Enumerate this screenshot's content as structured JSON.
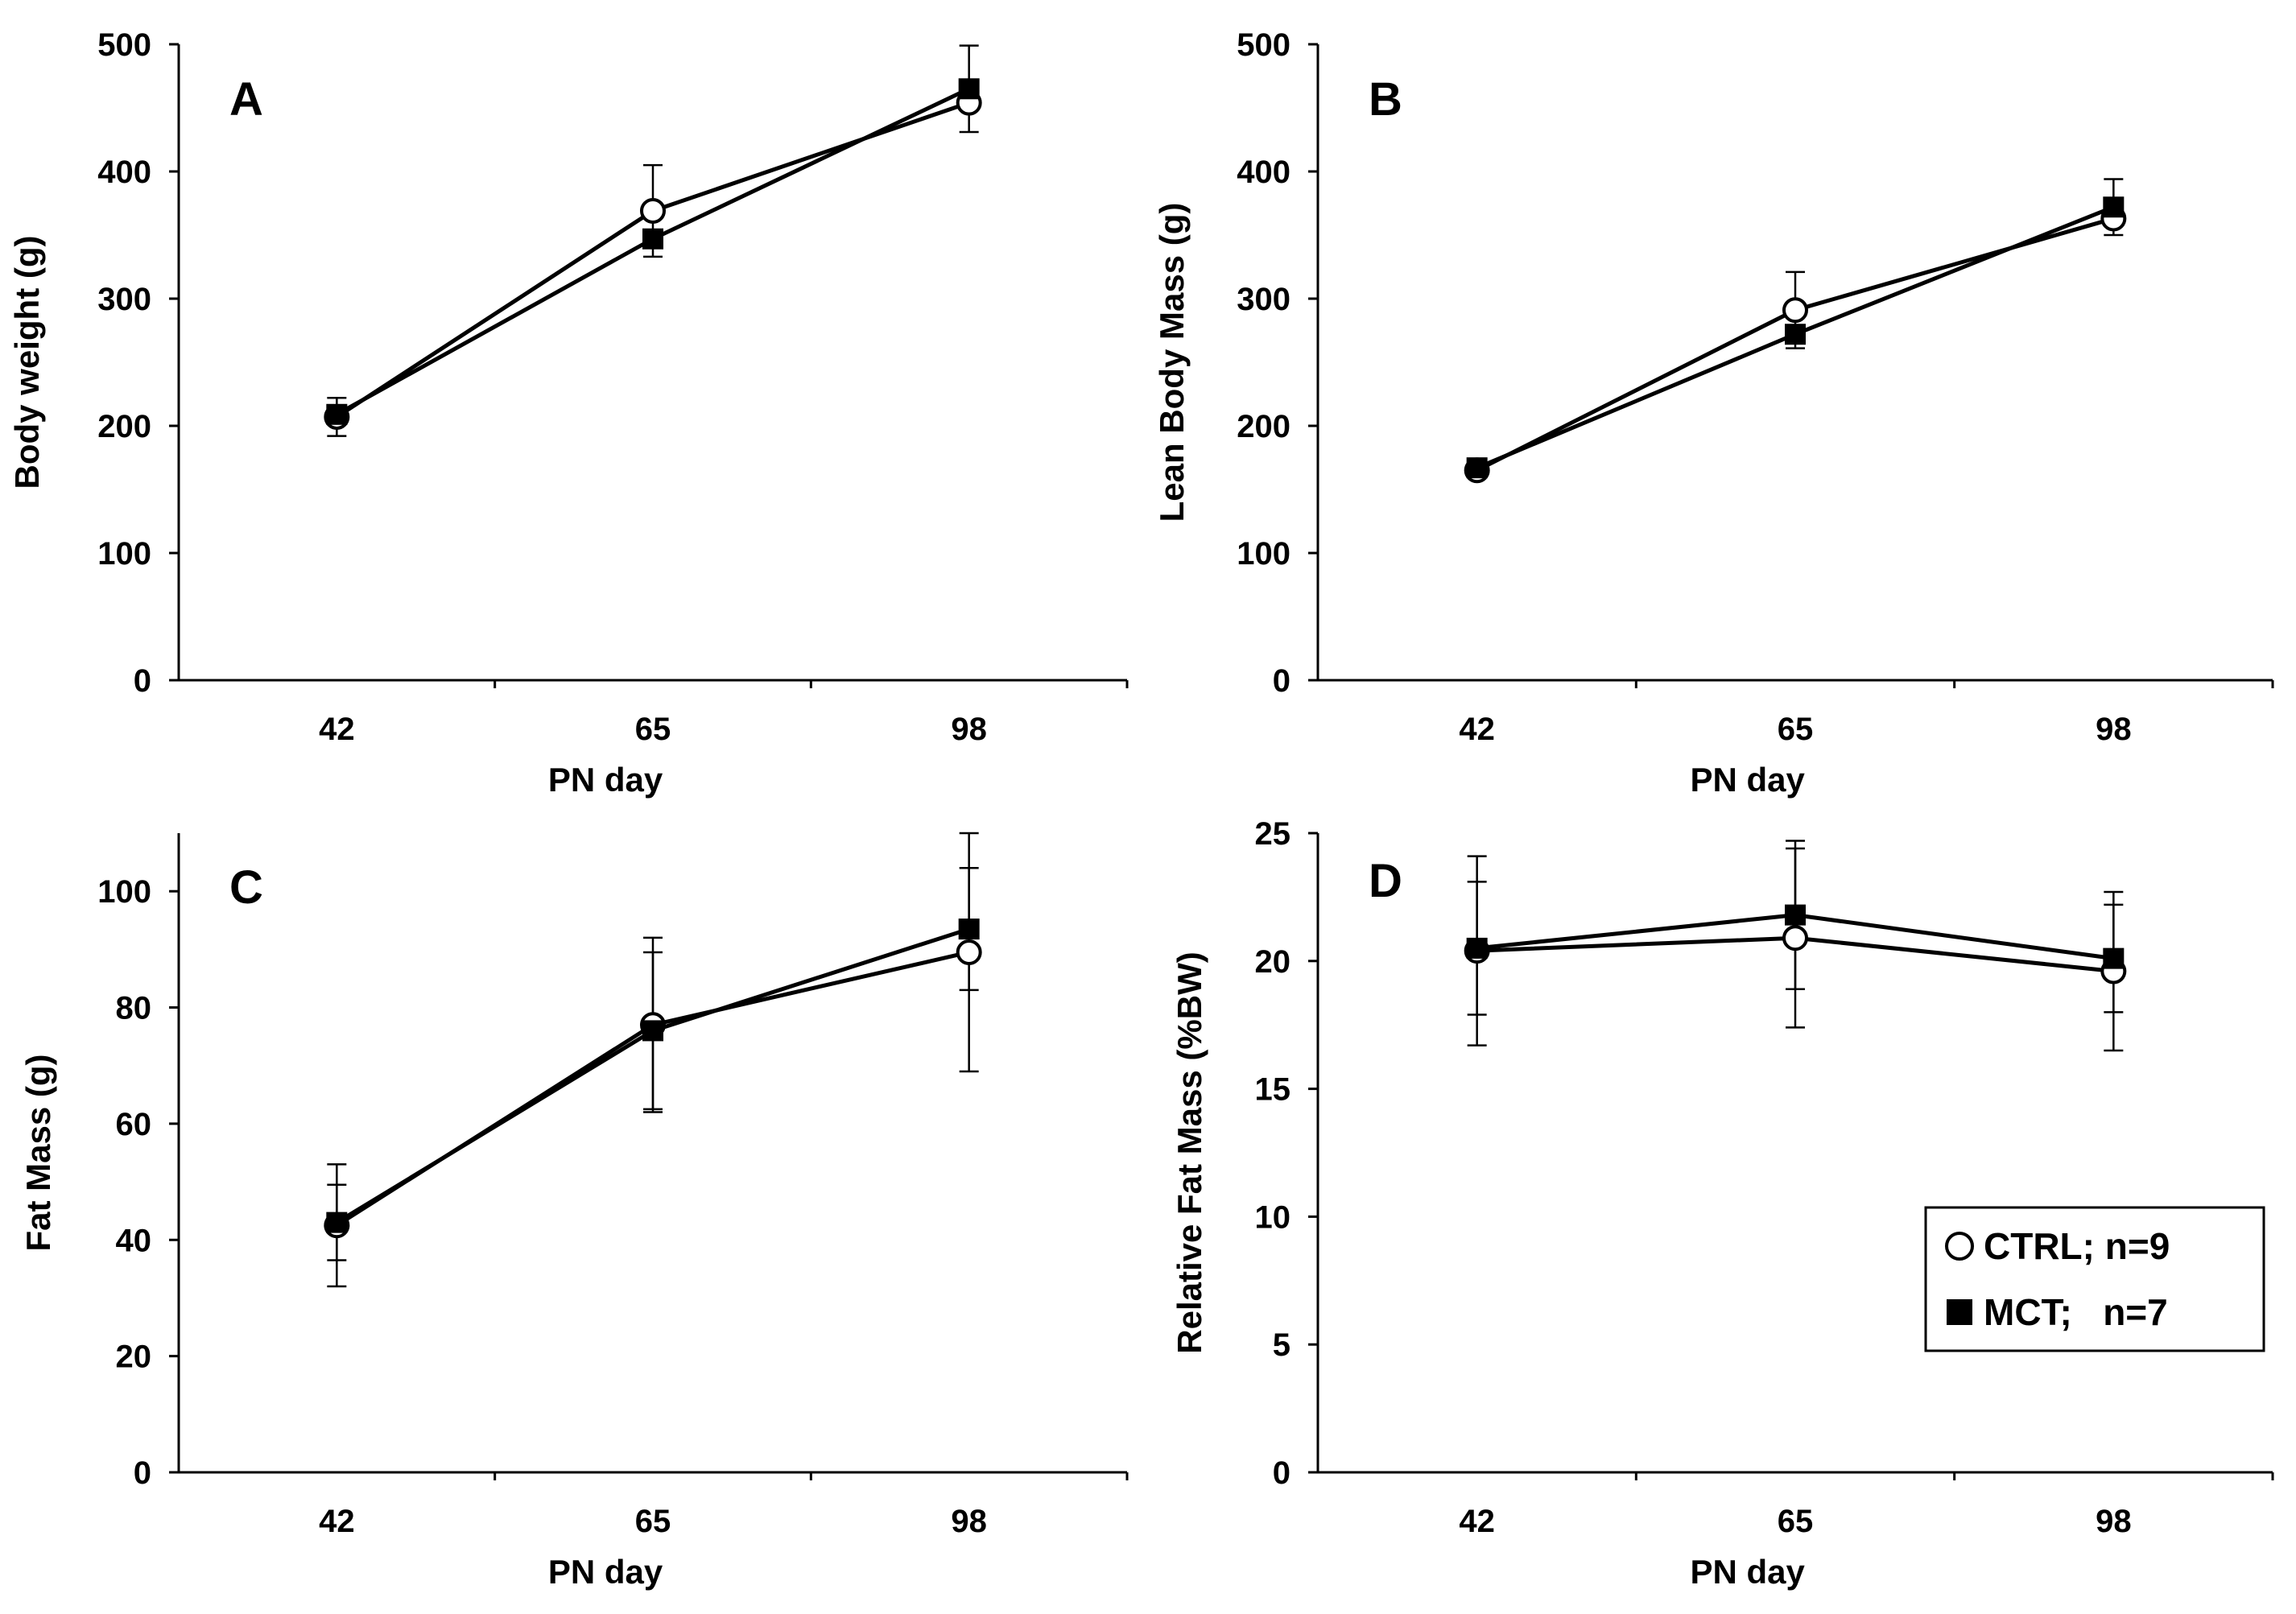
{
  "chart_data": [
    {
      "type": "line",
      "panel_label": "A",
      "xlabel": "PN day",
      "ylabel": "Body weight (g)",
      "categories": [
        "42",
        "65",
        "98"
      ],
      "ylim": [
        0,
        500
      ],
      "yticks": [
        "0",
        "100",
        "200",
        "300",
        "400",
        "500"
      ],
      "series": [
        {
          "name": "CTRL; n=9",
          "marker": "open-circle",
          "values": [
            207,
            369,
            454
          ],
          "error": [
            15,
            36,
            0
          ]
        },
        {
          "name": "MCT;   n=7",
          "marker": "filled-square",
          "values": [
            209,
            347,
            465
          ],
          "error": [
            0,
            0,
            34
          ]
        }
      ]
    },
    {
      "type": "line",
      "panel_label": "B",
      "xlabel": "PN day",
      "ylabel": "Lean Body Mass (g)",
      "categories": [
        "42",
        "65",
        "98"
      ],
      "ylim": [
        0,
        500
      ],
      "yticks": [
        "0",
        "100",
        "200",
        "300",
        "400",
        "500"
      ],
      "series": [
        {
          "name": "CTRL; n=9",
          "marker": "open-circle",
          "values": [
            165,
            291,
            363
          ],
          "error": [
            0,
            30,
            0
          ]
        },
        {
          "name": "MCT;   n=7",
          "marker": "filled-square",
          "values": [
            167,
            272,
            372
          ],
          "error": [
            0,
            0,
            22
          ]
        }
      ]
    },
    {
      "type": "line",
      "panel_label": "C",
      "xlabel": "PN day",
      "ylabel": "Fat Mass (g)",
      "categories": [
        "42",
        "65",
        "98"
      ],
      "ylim": [
        0,
        110
      ],
      "yticks": [
        "0",
        "20",
        "40",
        "60",
        "80",
        "100"
      ],
      "series": [
        {
          "name": "CTRL; n=9",
          "marker": "open-circle",
          "values": [
            42.5,
            77.0,
            89.5
          ],
          "error": [
            10.5,
            15.0,
            20.5
          ]
        },
        {
          "name": "MCT;   n=7",
          "marker": "filled-square",
          "values": [
            43.0,
            76.0,
            93.5
          ],
          "error": [
            6.5,
            13.5,
            10.5
          ]
        }
      ]
    },
    {
      "type": "line",
      "panel_label": "D",
      "xlabel": "PN day",
      "ylabel": "Relative Fat Mass (%BW)",
      "categories": [
        "42",
        "65",
        "98"
      ],
      "ylim": [
        0,
        25
      ],
      "yticks": [
        "0",
        "5",
        "10",
        "15",
        "20",
        "25"
      ],
      "series": [
        {
          "name": "CTRL; n=9",
          "marker": "open-circle",
          "values": [
            20.4,
            20.9,
            19.6
          ],
          "error": [
            3.7,
            3.5,
            3.1
          ]
        },
        {
          "name": "MCT;   n=7",
          "marker": "filled-square",
          "values": [
            20.5,
            21.8,
            20.1
          ],
          "error": [
            2.6,
            2.9,
            2.1
          ]
        }
      ],
      "legend": {
        "placement": "bottom-right",
        "entries": [
          {
            "marker": "open-circle",
            "label": "CTRL; n=9"
          },
          {
            "marker": "filled-square",
            "label": "MCT;   n=7"
          }
        ]
      }
    }
  ]
}
